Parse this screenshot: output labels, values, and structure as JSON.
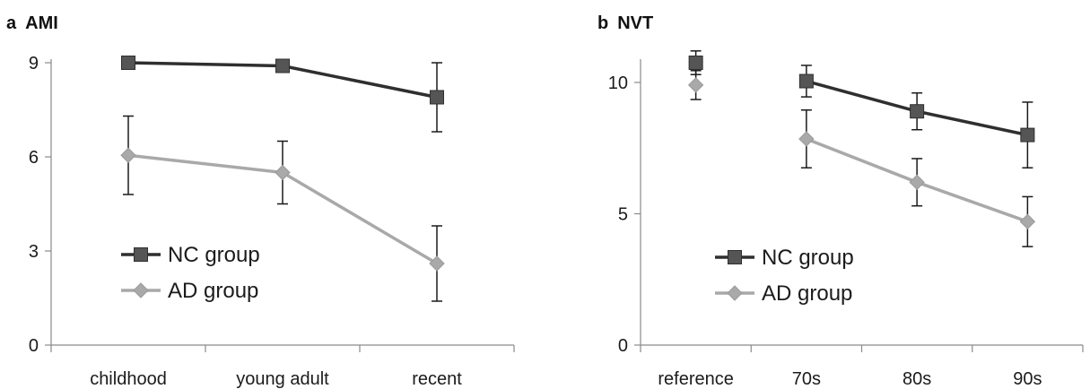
{
  "chart_data": [
    {
      "type": "line",
      "panel_label": "a",
      "title": "AMI",
      "categories": [
        "childhood",
        "young adult",
        "recent"
      ],
      "ylim": [
        0,
        9
      ],
      "yticks": [
        0,
        3,
        6,
        9
      ],
      "grid": false,
      "legend_position": "bottom-left",
      "series": [
        {
          "name": "NC group",
          "color": "#2f2f2f",
          "marker": "square",
          "values": [
            9.0,
            8.9,
            7.9
          ],
          "errors": [
            0,
            0,
            1.1
          ]
        },
        {
          "name": "AD group",
          "color": "#a9a9a9",
          "marker": "diamond",
          "values": [
            6.05,
            5.5,
            2.6
          ],
          "errors": [
            1.25,
            1.0,
            1.2
          ]
        }
      ]
    },
    {
      "type": "line",
      "panel_label": "b",
      "title": "NVT",
      "categories": [
        "reference",
        "70s",
        "80s",
        "90s"
      ],
      "ylim": [
        0,
        10.75
      ],
      "yticks": [
        0,
        5,
        10
      ],
      "grid": false,
      "legend_position": "bottom-left",
      "series": [
        {
          "name": "NC group",
          "color": "#2f2f2f",
          "marker": "square",
          "values": [
            10.75,
            10.05,
            8.9,
            8.0
          ],
          "errors": [
            0.45,
            0.6,
            0.7,
            1.25
          ],
          "connect_from_index": 1
        },
        {
          "name": "AD group",
          "color": "#a9a9a9",
          "marker": "diamond",
          "values": [
            9.9,
            7.85,
            6.2,
            4.7
          ],
          "errors": [
            0.55,
            1.1,
            0.9,
            0.95
          ],
          "connect_from_index": 1
        }
      ]
    }
  ]
}
